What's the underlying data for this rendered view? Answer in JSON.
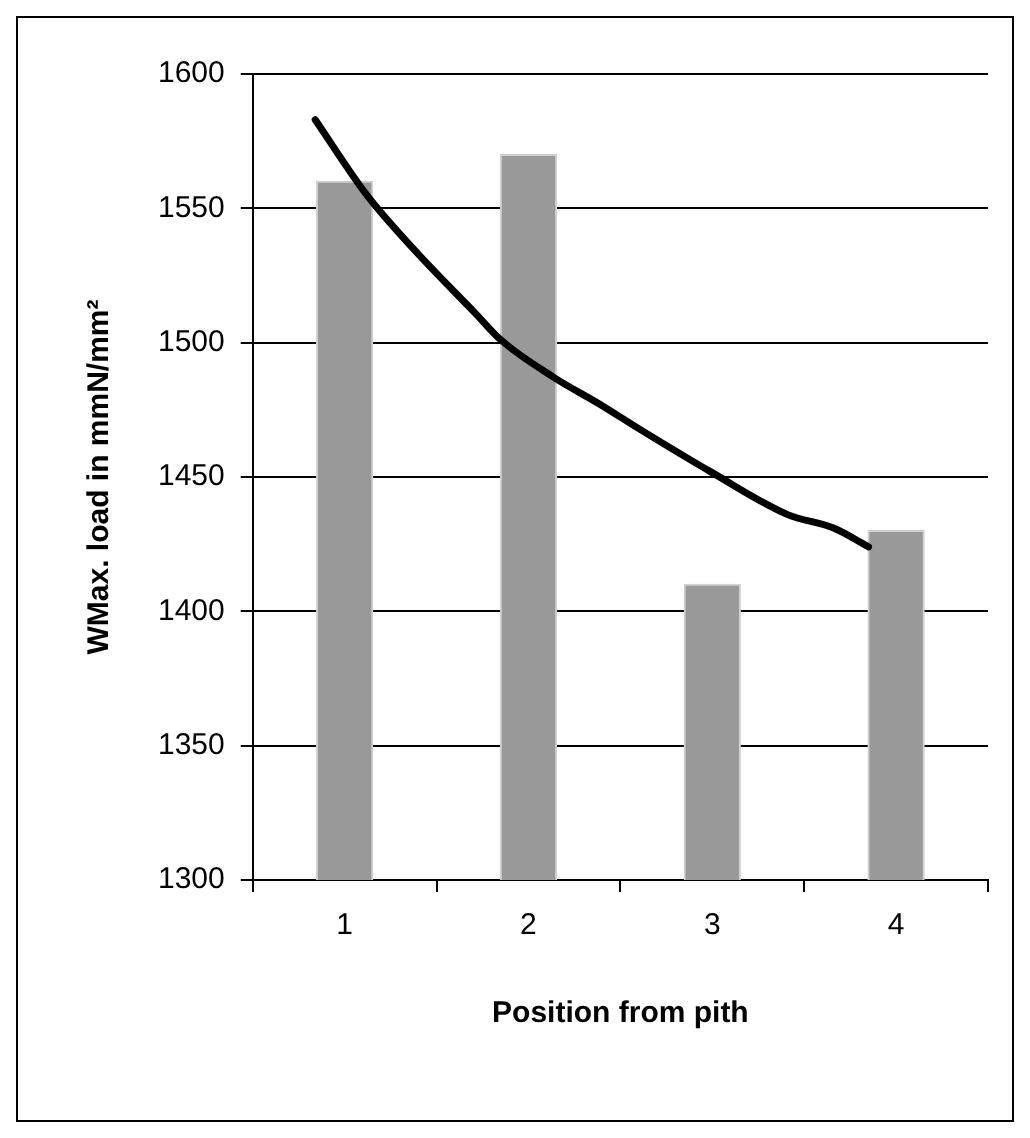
{
  "chart_data": {
    "type": "bar",
    "xlabel": "Position from pith",
    "ylabel": "WMax. load in mmN/mm²",
    "x": [
      1,
      2,
      3,
      4
    ],
    "xlim": [
      0.5,
      4.5
    ],
    "xticks": [
      1,
      2,
      3,
      4
    ],
    "ylim": [
      1300,
      1600
    ],
    "yticks": [
      1300,
      1350,
      1400,
      1450,
      1500,
      1550,
      1600
    ],
    "grid": "y",
    "legend": false,
    "series": [
      {
        "color": "#999999",
        "values": [
          1560,
          1570,
          1410,
          1430
        ]
      },
      {
        "type": "line",
        "color": "#000000",
        "x": [
          0.84,
          1.12,
          1.4,
          1.71,
          1.85,
          2.14,
          2.39,
          2.6,
          2.99,
          3.41,
          3.66,
          3.85
        ],
        "values": [
          1583,
          1555,
          1533,
          1511,
          1501,
          1487,
          1477,
          1468,
          1452,
          1436,
          1431,
          1424
        ],
        "marker": "none"
      }
    ]
  }
}
